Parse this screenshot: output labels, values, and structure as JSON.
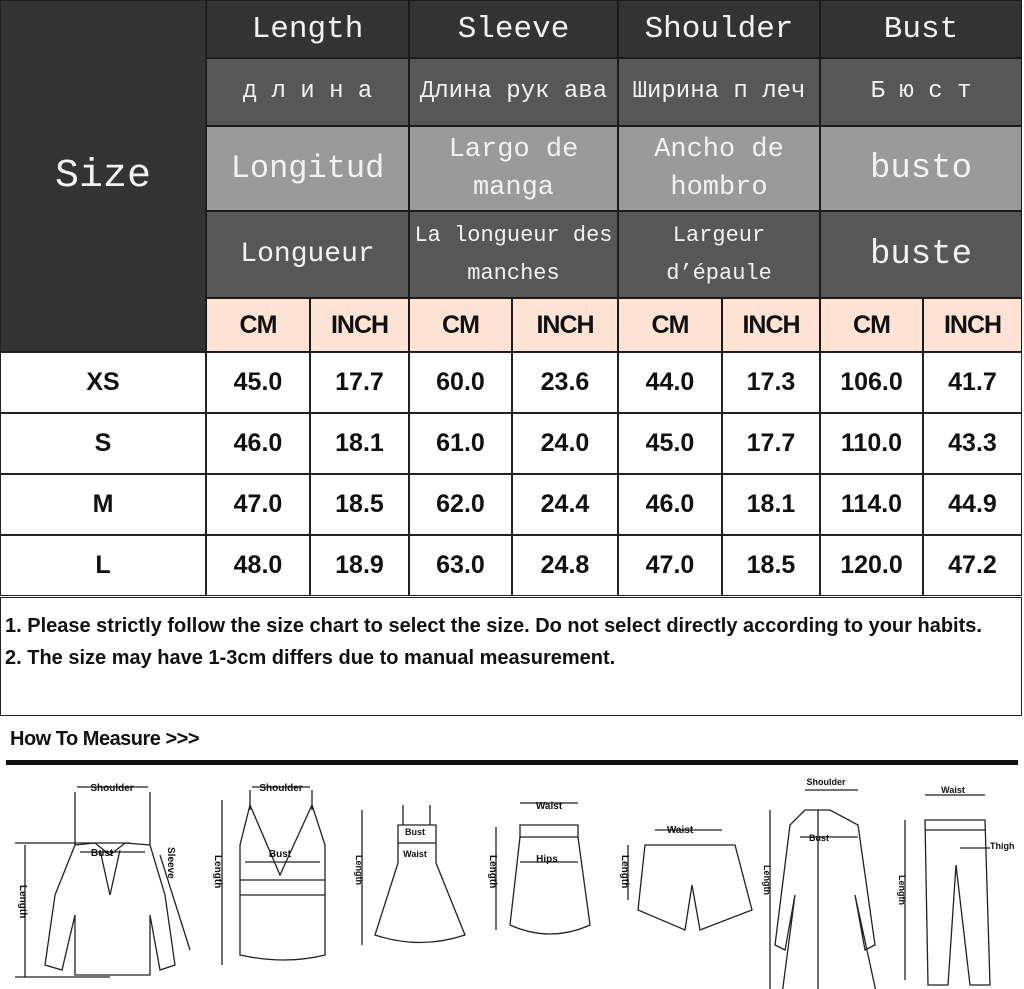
{
  "size_chart": {
    "size_header": "Size",
    "columns": [
      {
        "en": "Length",
        "ru": "д л и н а",
        "es": "Longitud",
        "fr": "Longueur"
      },
      {
        "en": "Sleeve",
        "ru": "Длина рук ава",
        "es": "Largo de manga",
        "fr": "La longueur des manches"
      },
      {
        "en": "Shoulder",
        "ru": "Ширина п леч",
        "es": "Ancho de hombro",
        "fr": "Largeur d’épaule"
      },
      {
        "en": "Bust",
        "ru": "Б ю с т",
        "es": "busto",
        "fr": "buste"
      }
    ],
    "units": [
      "CM",
      "INCH",
      "CM",
      "INCH",
      "CM",
      "INCH",
      "CM",
      "INCH"
    ],
    "rows": [
      {
        "size": "XS",
        "values": [
          "45.0",
          "17.7",
          "60.0",
          "23.6",
          "44.0",
          "17.3",
          "106.0",
          "41.7"
        ]
      },
      {
        "size": "S",
        "values": [
          "46.0",
          "18.1",
          "61.0",
          "24.0",
          "45.0",
          "17.7",
          "110.0",
          "43.3"
        ]
      },
      {
        "size": "M",
        "values": [
          "47.0",
          "18.5",
          "62.0",
          "24.4",
          "46.0",
          "18.1",
          "114.0",
          "44.9"
        ]
      },
      {
        "size": "L",
        "values": [
          "48.0",
          "18.9",
          "63.0",
          "24.8",
          "47.0",
          "18.5",
          "120.0",
          "47.2"
        ]
      }
    ]
  },
  "notes": [
    "1. Please strictly follow the size chart to select the size. Do not select directly according to your habits.",
    "2. The size may have 1-3cm differs due to manual measurement."
  ],
  "how_to_measure": {
    "title": "How To Measure >>>",
    "labels": {
      "shoulder": "Shoulder",
      "bust": "Bust",
      "sleeve": "Sleeve",
      "length": "Length",
      "waist": "Waist",
      "hips": "Hips",
      "thigh": "Thigh"
    }
  }
}
